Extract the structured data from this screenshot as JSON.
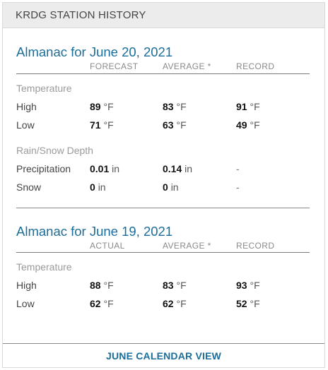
{
  "header": {
    "title": "KRDG STATION HISTORY"
  },
  "almanac_today": {
    "title": "Almanac for June 20, 2021",
    "columns": [
      "FORECAST",
      "AVERAGE *",
      "RECORD"
    ],
    "temperature_label": "Temperature",
    "high": {
      "label": "High",
      "forecast": "89",
      "average": "83",
      "record": "91",
      "unit": "°F"
    },
    "low": {
      "label": "Low",
      "forecast": "71",
      "average": "63",
      "record": "49",
      "unit": "°F"
    },
    "precip_label": "Rain/Snow Depth",
    "precipitation": {
      "label": "Precipitation",
      "forecast": "0.01",
      "average": "0.14",
      "record": "-",
      "unit": "in"
    },
    "snow": {
      "label": "Snow",
      "forecast": "0",
      "average": "0",
      "record": "-",
      "unit": "in"
    }
  },
  "almanac_yesterday": {
    "title": "Almanac for June 19, 2021",
    "columns": [
      "ACTUAL",
      "AVERAGE *",
      "RECORD"
    ],
    "temperature_label": "Temperature",
    "high": {
      "label": "High",
      "actual": "88",
      "average": "83",
      "record": "93",
      "unit": "°F"
    },
    "low": {
      "label": "Low",
      "actual": "62",
      "average": "62",
      "record": "52",
      "unit": "°F"
    }
  },
  "footer": {
    "link_label": "JUNE CALENDAR VIEW"
  },
  "colors": {
    "accent": "#1b6e9a",
    "header_bg": "#ececec"
  }
}
